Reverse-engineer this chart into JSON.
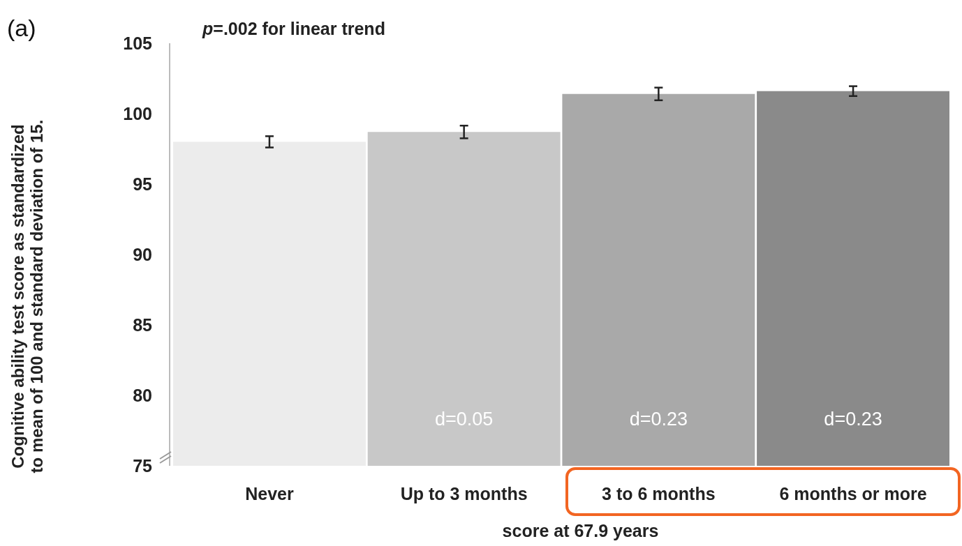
{
  "chart_data": {
    "type": "bar",
    "title": "(a)",
    "xlabel": "score at 67.9 years",
    "ylabel": "Cognitive ability test score as standardized to mean of 100 and standard deviation of 15.",
    "categories": [
      "Never",
      "Up to 3 months",
      "3 to 6 months",
      "6 months or more"
    ],
    "values": [
      98.0,
      98.7,
      101.4,
      101.6
    ],
    "errors": [
      0.4,
      0.45,
      0.45,
      0.35
    ],
    "colors": [
      "#ececec",
      "#c8c8c8",
      "#a9a9a9",
      "#8a8a8a"
    ],
    "ylim": [
      75,
      105
    ],
    "yticks": [
      75,
      80,
      85,
      90,
      95,
      100,
      105
    ],
    "grid": false,
    "annotations": [
      "p=.002 for linear trend",
      "d=0.05",
      "d=0.23",
      "d=0.23"
    ]
  }
}
